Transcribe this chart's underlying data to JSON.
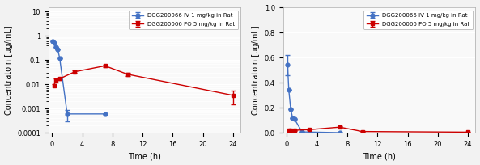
{
  "iv_time": [
    0.083,
    0.25,
    0.5,
    0.75,
    1.0,
    2.0,
    7.0
  ],
  "iv_conc": [
    0.6,
    0.5,
    0.35,
    0.28,
    0.12,
    0.0006,
    0.0006
  ],
  "iv_err": [
    0.0,
    0.0,
    0.0,
    0.0,
    0.0,
    0.0003,
    0.0
  ],
  "po_time": [
    0.25,
    0.5,
    1.0,
    3.0,
    7.0,
    10.0,
    24.0
  ],
  "po_conc": [
    0.009,
    0.015,
    0.017,
    0.033,
    0.058,
    0.026,
    0.0035
  ],
  "po_err": [
    0.001,
    0.003,
    0.002,
    0.004,
    0.006,
    0.004,
    0.002
  ],
  "iv_time2": [
    0.083,
    0.25,
    0.5,
    0.75,
    1.0,
    2.0,
    7.0
  ],
  "iv_conc2": [
    0.54,
    0.34,
    0.19,
    0.12,
    0.11,
    0.007,
    0.001
  ],
  "iv_err2": [
    0.08,
    0.0,
    0.0,
    0.0,
    0.0,
    0.0,
    0.0
  ],
  "po_time2": [
    0.25,
    0.5,
    1.0,
    3.0,
    7.0,
    10.0,
    24.0
  ],
  "po_conc2": [
    0.02,
    0.02,
    0.02,
    0.025,
    0.045,
    0.01,
    0.005
  ],
  "po_err2": [
    0.003,
    0.003,
    0.003,
    0.003,
    0.005,
    0.002,
    0.001
  ],
  "iv_color": "#4472C4",
  "po_color": "#CC0000",
  "iv_label": "DGG200066 IV 1 mg/kg in Rat",
  "po_label": "DGG200066 PO 5 mg/kg in Rat",
  "xlabel": "Time (h)",
  "ylabel": "Concentratoin [μg/mL]",
  "xlim": [
    -0.5,
    25
  ],
  "xticks": [
    0,
    4,
    8,
    12,
    16,
    20,
    24
  ],
  "ylim_log": [
    0.0001,
    15
  ],
  "ylim_lin": [
    0,
    1.0
  ],
  "yticks_lin": [
    0,
    0.2,
    0.4,
    0.6,
    0.8,
    1.0
  ],
  "background": "#f2f2f2",
  "plot_bg": "#f9f9f9",
  "grid_color": "#ffffff"
}
